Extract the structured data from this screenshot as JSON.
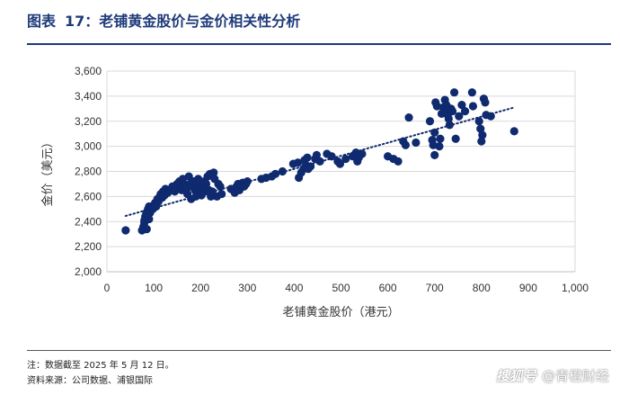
{
  "header": {
    "figure_label": "图表",
    "figure_number": "17：",
    "title": "老铺黄金股价与金价相关性分析"
  },
  "footer": {
    "note": "注：数据截至 2025 年 5 月 12 日。",
    "source": "资料来源：公司数据、浦银国际"
  },
  "watermark": {
    "logo": "搜狐号",
    "text": "@青橙财经"
  },
  "colors": {
    "point": "#0f2a6e",
    "trendline": "#0f2a6e",
    "grid": "#d9d9d9",
    "title": "#1f3a7a"
  },
  "chart_data": {
    "type": "scatter",
    "xlabel": "老铺黄金股价（港元）",
    "ylabel": "金价（美元）",
    "xlim": [
      0,
      1000
    ],
    "ylim": [
      2000,
      3600
    ],
    "x_ticks": [
      0,
      100,
      200,
      300,
      400,
      500,
      600,
      700,
      800,
      900,
      1000
    ],
    "y_ticks": [
      2000,
      2200,
      2400,
      2600,
      2800,
      3000,
      3200,
      3400,
      3600
    ],
    "x_tick_labels": [
      "0",
      "100",
      "200",
      "300",
      "400",
      "500",
      "600",
      "700",
      "800",
      "900",
      "1,000"
    ],
    "y_tick_labels": [
      "2,000",
      "2,200",
      "2,400",
      "2,600",
      "2,800",
      "3,000",
      "3,200",
      "3,400",
      "3,600"
    ],
    "grid": "horizontal",
    "trendline": {
      "style": "dotted",
      "type": "linear",
      "x": [
        40,
        870
      ],
      "y": [
        2445,
        3310
      ]
    },
    "points": [
      [
        40,
        2330
      ],
      [
        75,
        2330
      ],
      [
        78,
        2360
      ],
      [
        80,
        2390
      ],
      [
        80,
        2410
      ],
      [
        82,
        2440
      ],
      [
        84,
        2460
      ],
      [
        85,
        2340
      ],
      [
        86,
        2480
      ],
      [
        88,
        2500
      ],
      [
        90,
        2420
      ],
      [
        90,
        2520
      ],
      [
        92,
        2470
      ],
      [
        95,
        2510
      ],
      [
        98,
        2500
      ],
      [
        100,
        2530
      ],
      [
        103,
        2550
      ],
      [
        105,
        2520
      ],
      [
        108,
        2580
      ],
      [
        110,
        2560
      ],
      [
        113,
        2600
      ],
      [
        115,
        2620
      ],
      [
        118,
        2590
      ],
      [
        120,
        2640
      ],
      [
        123,
        2610
      ],
      [
        125,
        2660
      ],
      [
        130,
        2630
      ],
      [
        135,
        2650
      ],
      [
        140,
        2680
      ],
      [
        145,
        2640
      ],
      [
        150,
        2700
      ],
      [
        152,
        2660
      ],
      [
        155,
        2720
      ],
      [
        158,
        2690
      ],
      [
        160,
        2650
      ],
      [
        162,
        2740
      ],
      [
        165,
        2700
      ],
      [
        168,
        2680
      ],
      [
        170,
        2660
      ],
      [
        172,
        2620
      ],
      [
        175,
        2760
      ],
      [
        178,
        2700
      ],
      [
        180,
        2580
      ],
      [
        182,
        2680
      ],
      [
        185,
        2720
      ],
      [
        188,
        2650
      ],
      [
        190,
        2600
      ],
      [
        192,
        2700
      ],
      [
        195,
        2740
      ],
      [
        198,
        2630
      ],
      [
        200,
        2690
      ],
      [
        202,
        2610
      ],
      [
        205,
        2670
      ],
      [
        208,
        2720
      ],
      [
        210,
        2640
      ],
      [
        212,
        2700
      ],
      [
        215,
        2760
      ],
      [
        218,
        2650
      ],
      [
        220,
        2780
      ],
      [
        222,
        2600
      ],
      [
        225,
        2640
      ],
      [
        228,
        2790
      ],
      [
        230,
        2740
      ],
      [
        235,
        2600
      ],
      [
        238,
        2700
      ],
      [
        242,
        2680
      ],
      [
        245,
        2620
      ],
      [
        265,
        2660
      ],
      [
        270,
        2650
      ],
      [
        273,
        2630
      ],
      [
        277,
        2680
      ],
      [
        280,
        2700
      ],
      [
        283,
        2650
      ],
      [
        287,
        2690
      ],
      [
        290,
        2710
      ],
      [
        293,
        2680
      ],
      [
        297,
        2700
      ],
      [
        300,
        2720
      ],
      [
        330,
        2740
      ],
      [
        340,
        2750
      ],
      [
        352,
        2760
      ],
      [
        360,
        2780
      ],
      [
        375,
        2800
      ],
      [
        398,
        2860
      ],
      [
        408,
        2870
      ],
      [
        410,
        2750
      ],
      [
        415,
        2790
      ],
      [
        420,
        2820
      ],
      [
        422,
        2890
      ],
      [
        425,
        2850
      ],
      [
        428,
        2910
      ],
      [
        430,
        2820
      ],
      [
        435,
        2840
      ],
      [
        445,
        2900
      ],
      [
        448,
        2930
      ],
      [
        455,
        2880
      ],
      [
        470,
        2940
      ],
      [
        480,
        2920
      ],
      [
        493,
        2880
      ],
      [
        498,
        2860
      ],
      [
        510,
        2900
      ],
      [
        525,
        2920
      ],
      [
        532,
        2950
      ],
      [
        535,
        2880
      ],
      [
        538,
        2910
      ],
      [
        545,
        2940
      ],
      [
        600,
        2920
      ],
      [
        612,
        2900
      ],
      [
        622,
        2880
      ],
      [
        633,
        3040
      ],
      [
        638,
        3010
      ],
      [
        645,
        3230
      ],
      [
        660,
        3030
      ],
      [
        690,
        3200
      ],
      [
        695,
        3050
      ],
      [
        697,
        3010
      ],
      [
        700,
        3110
      ],
      [
        700,
        2930
      ],
      [
        702,
        3350
      ],
      [
        705,
        3320
      ],
      [
        710,
        3000
      ],
      [
        712,
        3060
      ],
      [
        715,
        3260
      ],
      [
        718,
        3310
      ],
      [
        720,
        3280
      ],
      [
        722,
        3370
      ],
      [
        725,
        3330
      ],
      [
        728,
        3250
      ],
      [
        730,
        3220
      ],
      [
        732,
        3170
      ],
      [
        735,
        3300
      ],
      [
        738,
        3280
      ],
      [
        742,
        3430
      ],
      [
        745,
        3060
      ],
      [
        752,
        3240
      ],
      [
        758,
        3330
      ],
      [
        765,
        3280
      ],
      [
        780,
        3430
      ],
      [
        782,
        3320
      ],
      [
        795,
        3200
      ],
      [
        798,
        3140
      ],
      [
        800,
        3040
      ],
      [
        802,
        3090
      ],
      [
        805,
        3380
      ],
      [
        808,
        3350
      ],
      [
        810,
        3250
      ],
      [
        820,
        3240
      ],
      [
        870,
        3120
      ]
    ]
  }
}
